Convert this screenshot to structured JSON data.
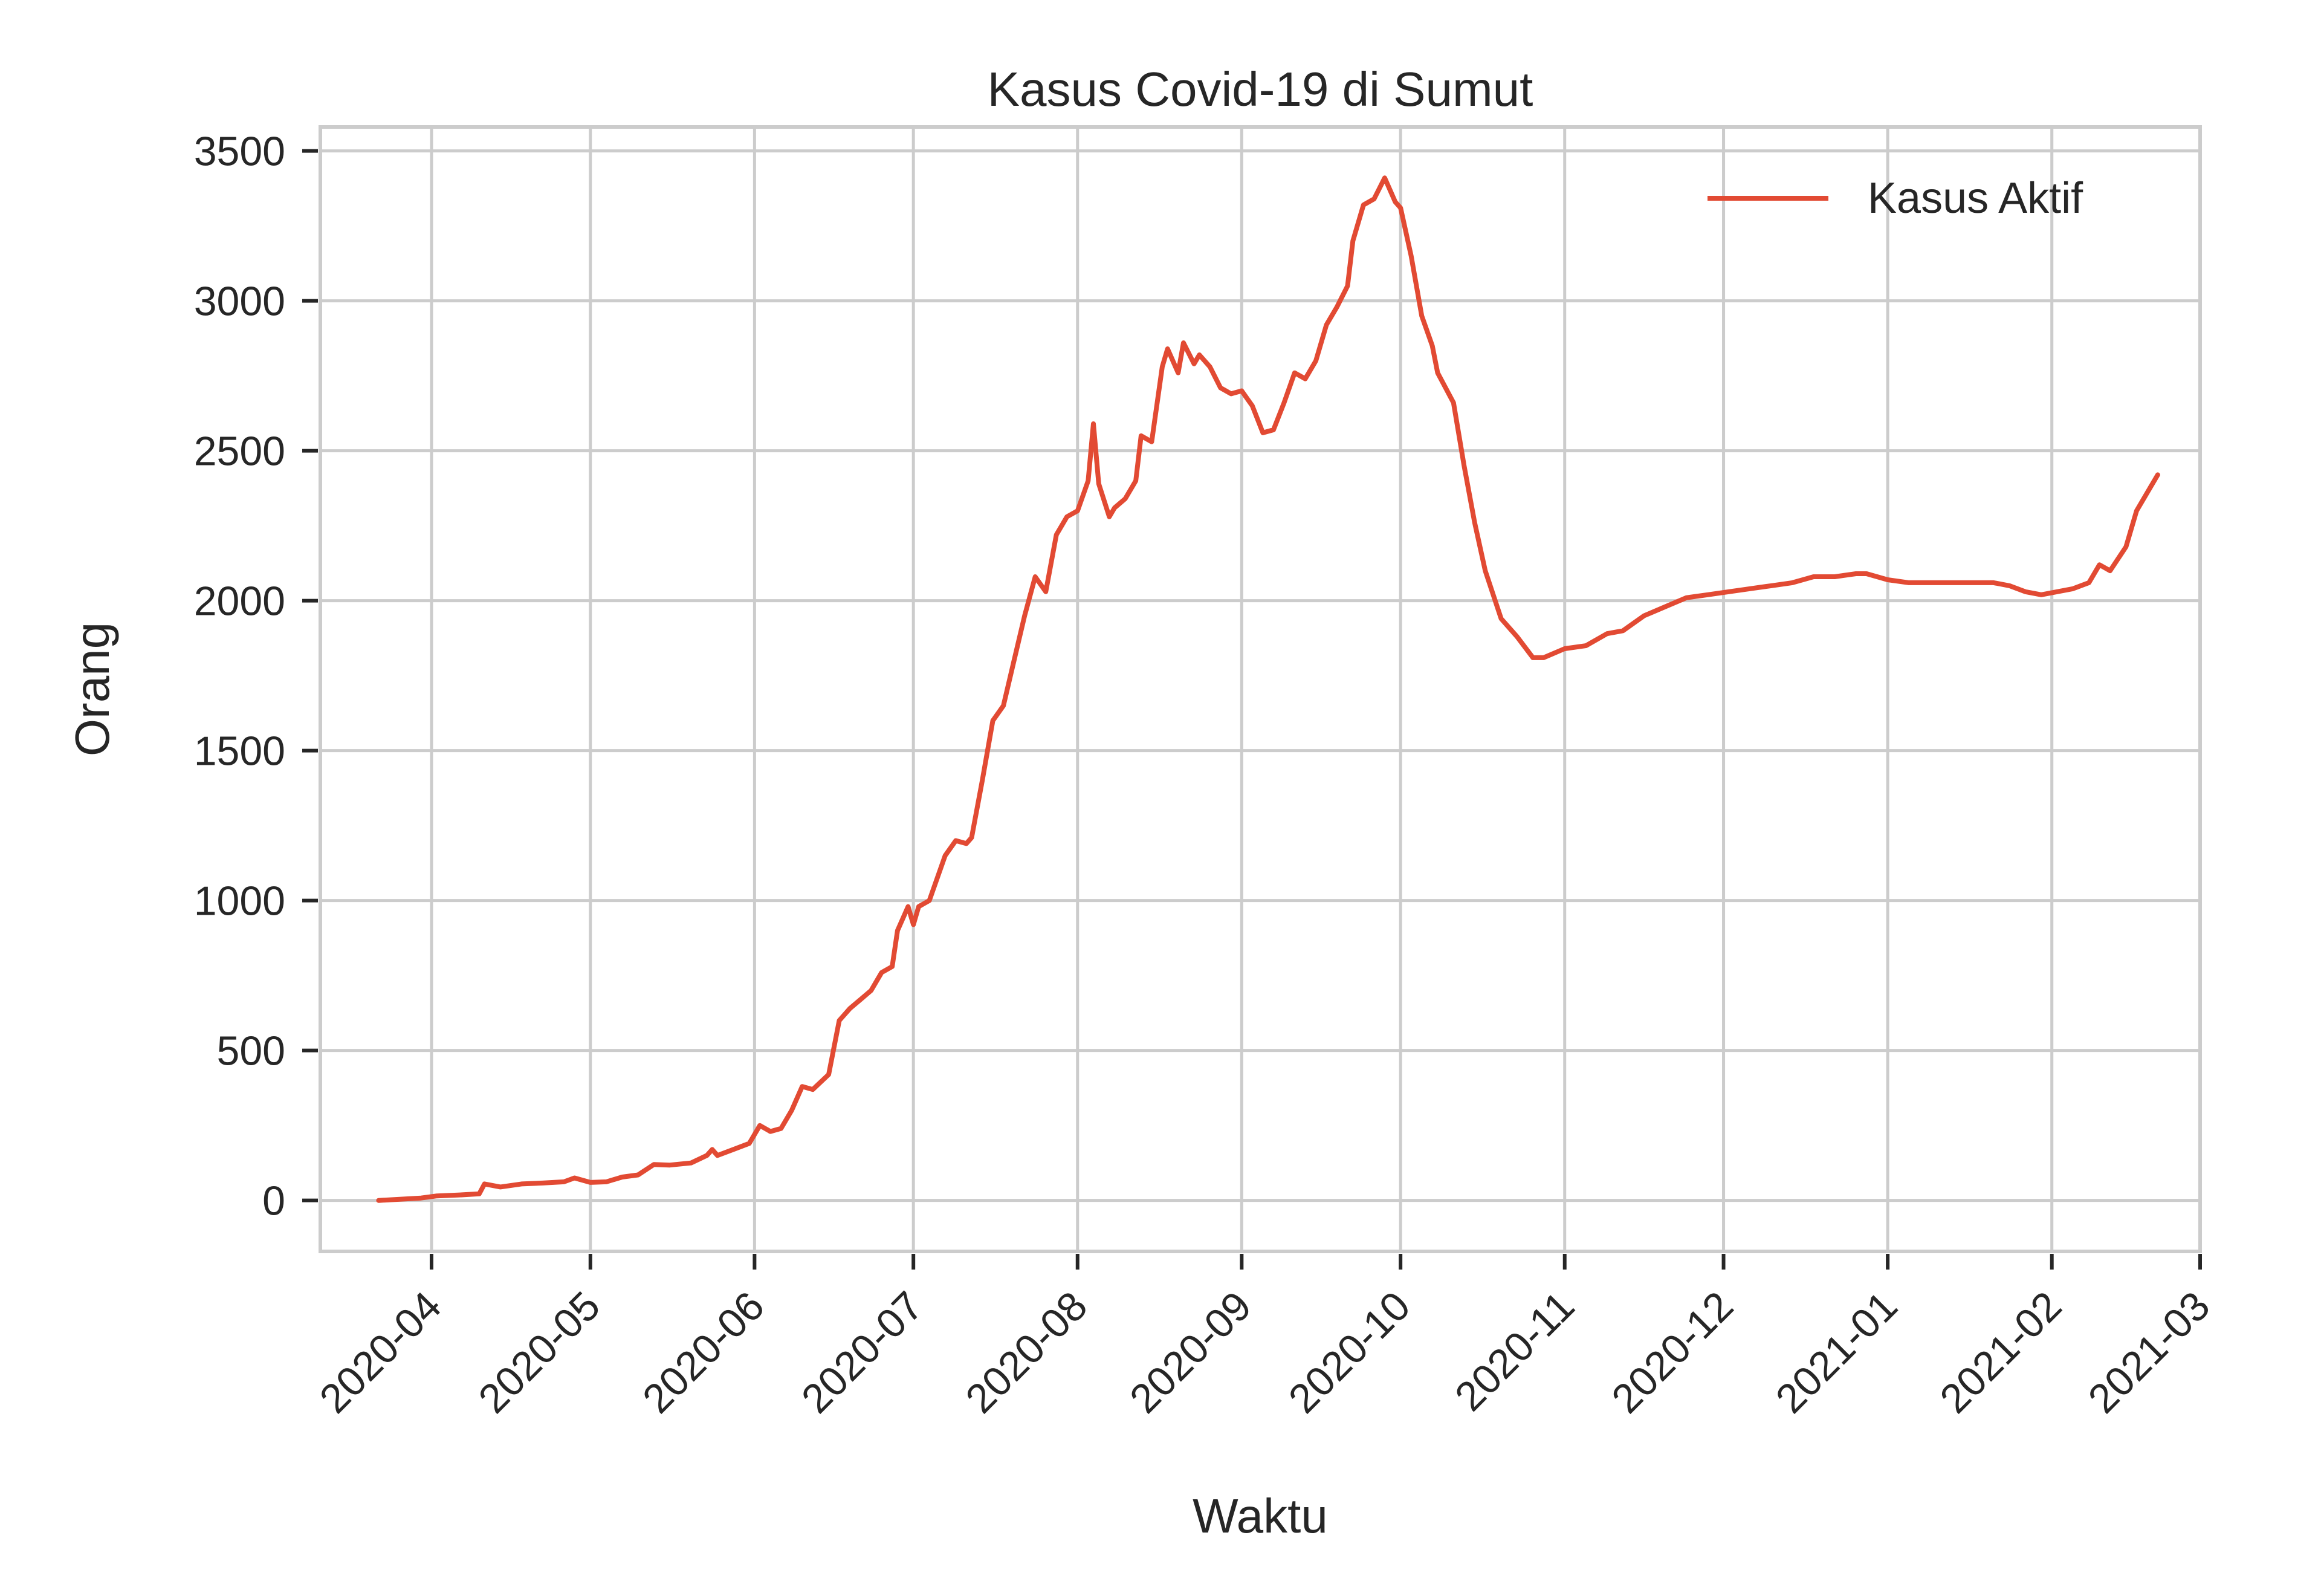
{
  "chart_data": {
    "type": "line",
    "title": "Kasus Covid-19 di Sumut",
    "xlabel": "Waktu",
    "ylabel": "Orang",
    "ylim": [
      -170,
      3580
    ],
    "xlim": [
      "2020-03-11",
      "2021-03-01"
    ],
    "x_ticks": [
      "2020-04",
      "2020-05",
      "2020-06",
      "2020-07",
      "2020-08",
      "2020-09",
      "2020-10",
      "2020-11",
      "2020-12",
      "2021-01",
      "2021-02",
      "2021-03"
    ],
    "y_ticks": [
      "0",
      "500",
      "1000",
      "1500",
      "2000",
      "2500",
      "3000",
      "3500"
    ],
    "grid": true,
    "legend": "top-right",
    "series": [
      {
        "name": "Kasus Aktif",
        "color": "#e24a33",
        "points": [
          [
            "2020-03-22",
            0
          ],
          [
            "2020-03-25",
            3
          ],
          [
            "2020-03-30",
            8
          ],
          [
            "2020-04-02",
            15
          ],
          [
            "2020-04-06",
            18
          ],
          [
            "2020-04-10",
            22
          ],
          [
            "2020-04-11",
            55
          ],
          [
            "2020-04-14",
            45
          ],
          [
            "2020-04-18",
            55
          ],
          [
            "2020-04-22",
            58
          ],
          [
            "2020-04-26",
            62
          ],
          [
            "2020-04-28",
            75
          ],
          [
            "2020-05-01",
            60
          ],
          [
            "2020-05-04",
            62
          ],
          [
            "2020-05-07",
            78
          ],
          [
            "2020-05-10",
            85
          ],
          [
            "2020-05-13",
            120
          ],
          [
            "2020-05-16",
            118
          ],
          [
            "2020-05-20",
            125
          ],
          [
            "2020-05-23",
            150
          ],
          [
            "2020-05-24",
            170
          ],
          [
            "2020-05-25",
            150
          ],
          [
            "2020-05-28",
            170
          ],
          [
            "2020-05-31",
            190
          ],
          [
            "2020-06-02",
            250
          ],
          [
            "2020-06-04",
            230
          ],
          [
            "2020-06-06",
            240
          ],
          [
            "2020-06-08",
            300
          ],
          [
            "2020-06-10",
            380
          ],
          [
            "2020-06-12",
            370
          ],
          [
            "2020-06-15",
            420
          ],
          [
            "2020-06-17",
            600
          ],
          [
            "2020-06-19",
            640
          ],
          [
            "2020-06-21",
            670
          ],
          [
            "2020-06-23",
            700
          ],
          [
            "2020-06-25",
            760
          ],
          [
            "2020-06-27",
            780
          ],
          [
            "2020-06-28",
            900
          ],
          [
            "2020-06-30",
            980
          ],
          [
            "2020-07-01",
            920
          ],
          [
            "2020-07-02",
            980
          ],
          [
            "2020-07-04",
            1000
          ],
          [
            "2020-07-06",
            1100
          ],
          [
            "2020-07-07",
            1150
          ],
          [
            "2020-07-09",
            1200
          ],
          [
            "2020-07-11",
            1190
          ],
          [
            "2020-07-12",
            1210
          ],
          [
            "2020-07-14",
            1400
          ],
          [
            "2020-07-16",
            1600
          ],
          [
            "2020-07-18",
            1650
          ],
          [
            "2020-07-20",
            1800
          ],
          [
            "2020-07-22",
            1950
          ],
          [
            "2020-07-24",
            2080
          ],
          [
            "2020-07-26",
            2030
          ],
          [
            "2020-07-28",
            2220
          ],
          [
            "2020-07-30",
            2280
          ],
          [
            "2020-08-01",
            2300
          ],
          [
            "2020-08-03",
            2400
          ],
          [
            "2020-08-04",
            2590
          ],
          [
            "2020-08-05",
            2390
          ],
          [
            "2020-08-07",
            2280
          ],
          [
            "2020-08-08",
            2310
          ],
          [
            "2020-08-10",
            2340
          ],
          [
            "2020-08-12",
            2400
          ],
          [
            "2020-08-13",
            2550
          ],
          [
            "2020-08-15",
            2530
          ],
          [
            "2020-08-17",
            2780
          ],
          [
            "2020-08-18",
            2840
          ],
          [
            "2020-08-20",
            2760
          ],
          [
            "2020-08-21",
            2860
          ],
          [
            "2020-08-23",
            2790
          ],
          [
            "2020-08-24",
            2820
          ],
          [
            "2020-08-26",
            2780
          ],
          [
            "2020-08-28",
            2710
          ],
          [
            "2020-08-30",
            2690
          ],
          [
            "2020-09-01",
            2700
          ],
          [
            "2020-09-03",
            2650
          ],
          [
            "2020-09-05",
            2560
          ],
          [
            "2020-09-07",
            2570
          ],
          [
            "2020-09-09",
            2660
          ],
          [
            "2020-09-11",
            2760
          ],
          [
            "2020-09-13",
            2740
          ],
          [
            "2020-09-15",
            2800
          ],
          [
            "2020-09-17",
            2920
          ],
          [
            "2020-09-19",
            2980
          ],
          [
            "2020-09-21",
            3050
          ],
          [
            "2020-09-22",
            3200
          ],
          [
            "2020-09-24",
            3320
          ],
          [
            "2020-09-26",
            3340
          ],
          [
            "2020-09-28",
            3410
          ],
          [
            "2020-09-30",
            3330
          ],
          [
            "2020-10-01",
            3310
          ],
          [
            "2020-10-03",
            3150
          ],
          [
            "2020-10-05",
            2950
          ],
          [
            "2020-10-07",
            2850
          ],
          [
            "2020-10-08",
            2760
          ],
          [
            "2020-10-11",
            2660
          ],
          [
            "2020-10-13",
            2450
          ],
          [
            "2020-10-15",
            2260
          ],
          [
            "2020-10-17",
            2100
          ],
          [
            "2020-10-20",
            1940
          ],
          [
            "2020-10-23",
            1880
          ],
          [
            "2020-10-26",
            1810
          ],
          [
            "2020-10-28",
            1810
          ],
          [
            "2020-11-01",
            1840
          ],
          [
            "2020-11-05",
            1850
          ],
          [
            "2020-11-09",
            1890
          ],
          [
            "2020-11-12",
            1900
          ],
          [
            "2020-11-16",
            1950
          ],
          [
            "2020-11-20",
            1980
          ],
          [
            "2020-11-24",
            2010
          ],
          [
            "2020-11-28",
            2020
          ],
          [
            "2020-12-02",
            2030
          ],
          [
            "2020-12-06",
            2040
          ],
          [
            "2020-12-10",
            2050
          ],
          [
            "2020-12-14",
            2060
          ],
          [
            "2020-12-18",
            2080
          ],
          [
            "2020-12-22",
            2080
          ],
          [
            "2020-12-26",
            2090
          ],
          [
            "2020-12-28",
            2090
          ],
          [
            "2021-01-01",
            2070
          ],
          [
            "2021-01-05",
            2060
          ],
          [
            "2021-01-09",
            2060
          ],
          [
            "2021-01-13",
            2060
          ],
          [
            "2021-01-17",
            2060
          ],
          [
            "2021-01-21",
            2060
          ],
          [
            "2021-01-24",
            2050
          ],
          [
            "2021-01-27",
            2030
          ],
          [
            "2021-01-30",
            2020
          ],
          [
            "2021-02-02",
            2030
          ],
          [
            "2021-02-05",
            2040
          ],
          [
            "2021-02-08",
            2060
          ],
          [
            "2021-02-10",
            2120
          ],
          [
            "2021-02-12",
            2100
          ],
          [
            "2021-02-15",
            2180
          ],
          [
            "2021-02-17",
            2300
          ],
          [
            "2021-02-19",
            2360
          ],
          [
            "2021-02-21",
            2420
          ]
        ]
      }
    ]
  }
}
